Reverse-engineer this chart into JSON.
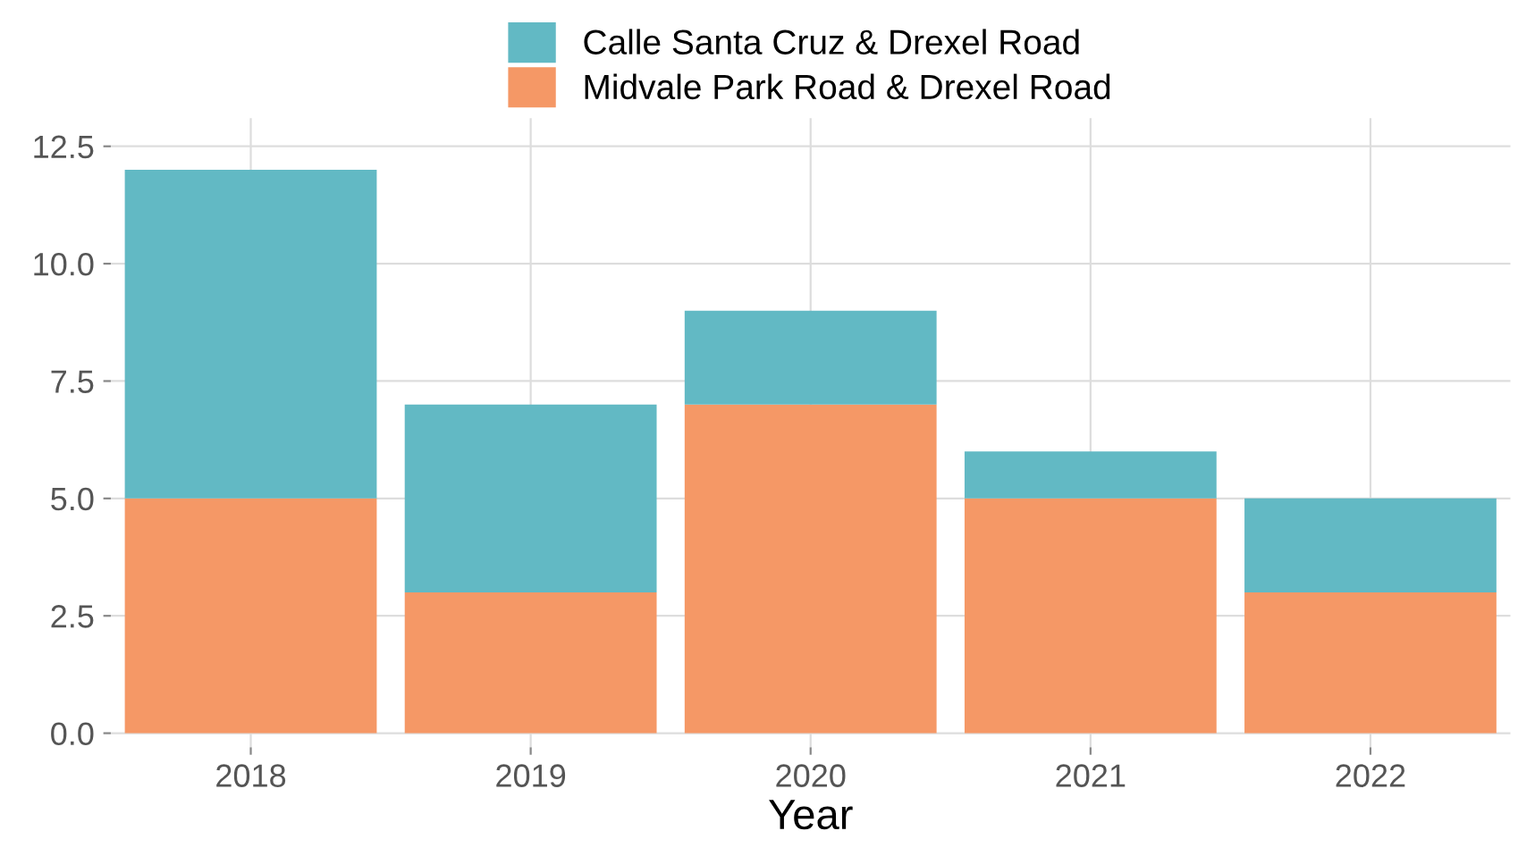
{
  "chart_data": {
    "type": "bar",
    "stacked": true,
    "xlabel": "Year",
    "categories": [
      "2018",
      "2019",
      "2020",
      "2021",
      "2022"
    ],
    "series": [
      {
        "name": "Midvale Park Road & Drexel Road",
        "color": "#f59866",
        "values": [
          5,
          3,
          7,
          5,
          3
        ]
      },
      {
        "name": "Calle Santa Cruz & Drexel Road",
        "color": "#62b9c4",
        "values": [
          7,
          4,
          2,
          1,
          2
        ]
      }
    ],
    "ylim": [
      -0.3,
      13.1
    ],
    "yticks": [
      {
        "value": 0,
        "label": "0.0"
      },
      {
        "value": 2.5,
        "label": "2.5"
      },
      {
        "value": 5,
        "label": "5.0"
      },
      {
        "value": 7.5,
        "label": "7.5"
      },
      {
        "value": 10,
        "label": "10.0"
      },
      {
        "value": 12.5,
        "label": "12.5"
      }
    ],
    "grid": true,
    "legend": "top"
  }
}
